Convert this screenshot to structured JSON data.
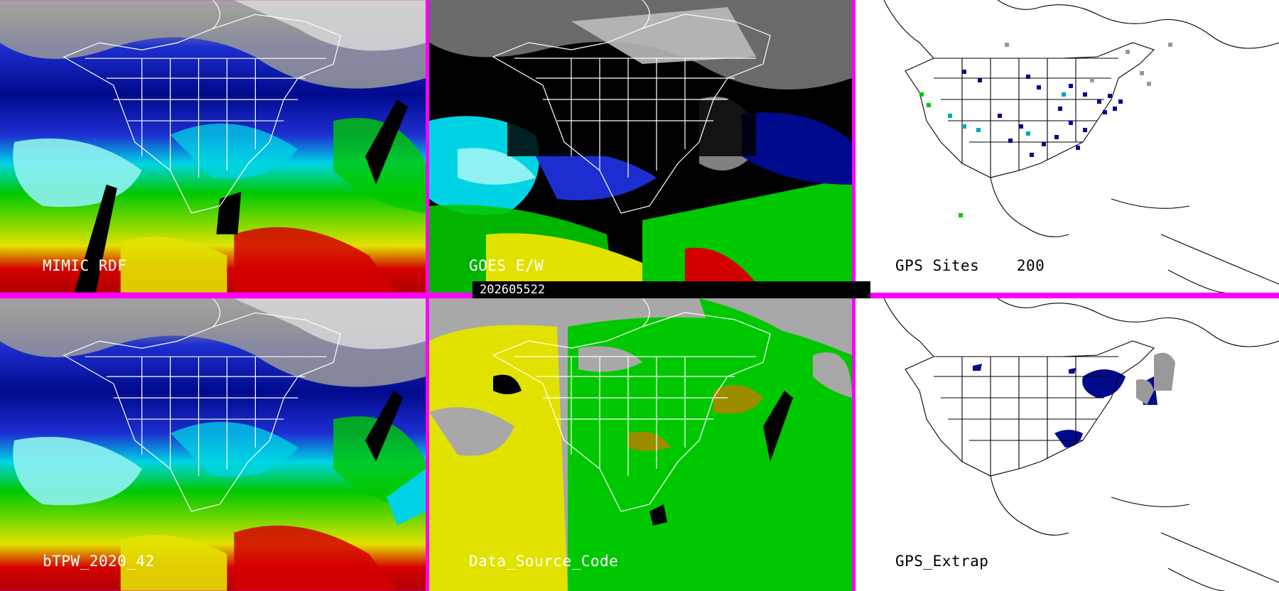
{
  "panels": [
    {
      "id": "mimic",
      "label": "MIMIC RDF",
      "theme": "moisture"
    },
    {
      "id": "goes",
      "label": "GOES E/W",
      "theme": "goes"
    },
    {
      "id": "gps",
      "label": "GPS Sites    200",
      "theme": "sites"
    },
    {
      "id": "btpw",
      "label": "bTPW_2020_42",
      "theme": "moisture"
    },
    {
      "id": "dsc",
      "label": "Data_Source_Code",
      "theme": "source"
    },
    {
      "id": "extrap",
      "label": "GPS_Extrap",
      "theme": "extrap"
    }
  ],
  "timestamp": "202605522",
  "colors": {
    "border": "#ff00ff",
    "navy": "#000a8c",
    "blue": "#1d2ed0",
    "cyan": "#00d4e4",
    "lightcyan": "#8ef2f2",
    "green": "#00c800",
    "yellow": "#e2e200",
    "red": "#d40000",
    "grey": "#a8a8a8",
    "olive": "#9c8c00"
  }
}
